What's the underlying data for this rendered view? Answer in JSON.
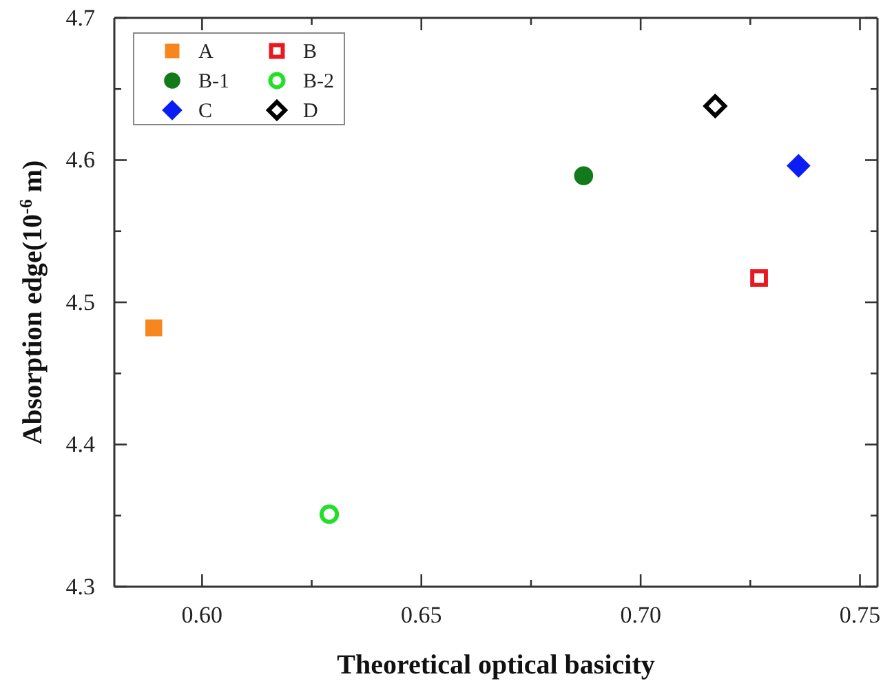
{
  "chart_data": {
    "type": "scatter",
    "xlabel": "Theoretical optical basicity",
    "ylabel": "Absorption edge(10$^{-6}$ m)",
    "xlim": [
      0.58,
      0.754
    ],
    "xticks": [
      {
        "value": 0.6,
        "label": "0.60"
      },
      {
        "value": 0.625,
        "label": null
      },
      {
        "value": 0.65,
        "label": "0.65"
      },
      {
        "value": 0.675,
        "label": null
      },
      {
        "value": 0.7,
        "label": "0.70"
      },
      {
        "value": 0.725,
        "label": null
      },
      {
        "value": 0.75,
        "label": "0.75"
      }
    ],
    "ylim": [
      4.3,
      4.7
    ],
    "yticks": [
      4.3,
      {
        "value": 4.35,
        "label": null
      },
      4.4,
      {
        "value": 4.45,
        "label": null
      },
      4.5,
      {
        "value": 4.55,
        "label": null
      },
      4.6,
      {
        "value": 4.65,
        "label": null
      },
      4.7
    ],
    "legend": "top left",
    "grid": false,
    "series": [
      {
        "name": "A",
        "color": "#f7861f",
        "marker": "square",
        "x": [
          0.589
        ],
        "values": [
          4.482
        ]
      },
      {
        "name": "B",
        "color": "#e8191f",
        "marker": "square",
        "x": [
          0.727
        ],
        "values": [
          4.517
        ]
      },
      {
        "name": "B-1",
        "color": "#137a1b",
        "marker": "circle",
        "x": [
          0.687
        ],
        "values": [
          4.589
        ]
      },
      {
        "name": "B-2",
        "color": "#22e02a",
        "marker": "circle",
        "x": [
          0.629
        ],
        "values": [
          4.351
        ]
      },
      {
        "name": "C",
        "color": "#0b1df5",
        "marker": "diamond",
        "x": [
          0.736
        ],
        "values": [
          4.596
        ]
      },
      {
        "name": "D",
        "color": "#000000",
        "marker": "diamond",
        "x": [
          0.717
        ],
        "values": [
          4.638
        ]
      }
    ]
  }
}
